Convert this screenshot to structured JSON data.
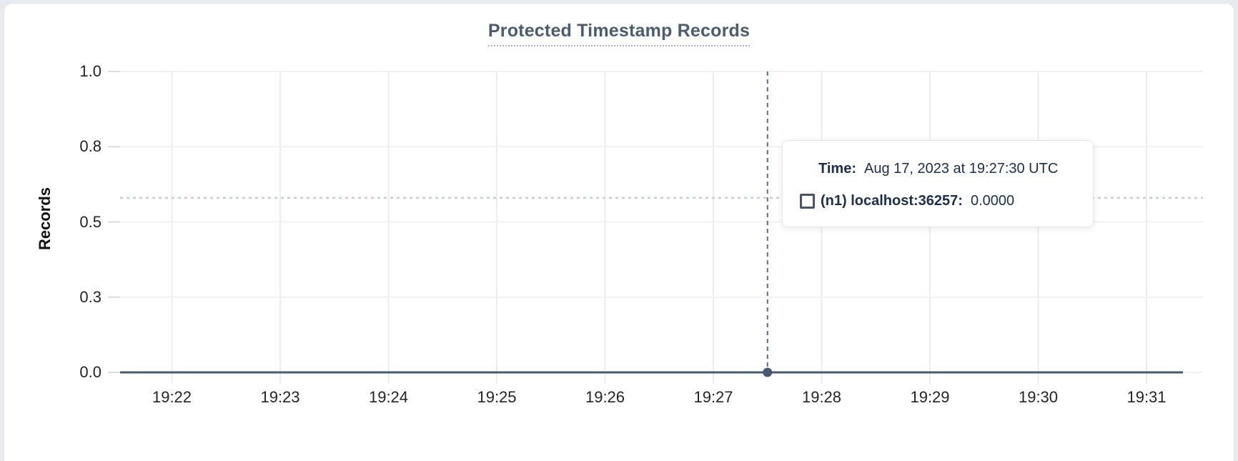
{
  "page": {
    "background": "#e9eaee",
    "card_background": "#ffffff"
  },
  "chart_data": {
    "type": "line",
    "title": "Protected Timestamp Records",
    "xlabel": "",
    "ylabel": "Records",
    "x_ticks": [
      "19:22",
      "19:23",
      "19:24",
      "19:25",
      "19:26",
      "19:27",
      "19:28",
      "19:29",
      "19:30",
      "19:31"
    ],
    "y_ticks": [
      {
        "label": "1.0",
        "value": 1.0
      },
      {
        "label": "0.8",
        "value": 0.75
      },
      {
        "label": "0.5",
        "value": 0.5
      },
      {
        "label": "0.3",
        "value": 0.25
      },
      {
        "label": "0.0",
        "value": 0.0
      }
    ],
    "ylim": [
      0,
      1
    ],
    "grid": true,
    "legend_position": "tooltip-only",
    "series": [
      {
        "name": "(n1) localhost:36257",
        "color": "#475872",
        "values_at_ticks": [
          0,
          0,
          0,
          0,
          0,
          0,
          0,
          0,
          0,
          0
        ]
      }
    ],
    "hover": {
      "time": "19:27:30",
      "first_tick_time": "19:22",
      "point_value": 0,
      "crosshair_y_value": 0.58
    }
  },
  "tooltip": {
    "time_label": "Time:",
    "time_value": "Aug 17, 2023 at 19:27:30 UTC",
    "series_label": "(n1) localhost:36257:",
    "series_value": "0.0000",
    "legend_icon": "square-outline"
  },
  "colors": {
    "accent_slate": "#475872",
    "navy_text": "#1b2d50",
    "grid_vertical": "#ececef",
    "grid_horizontal": "#f1f1f4",
    "axis_tick_stub": "#d9dce1",
    "crosshair_vertical": "#5c6e86",
    "crosshair_horizontal": "#c8cdd4",
    "tick_text": "#242424",
    "title_text": "#4c5b70"
  }
}
